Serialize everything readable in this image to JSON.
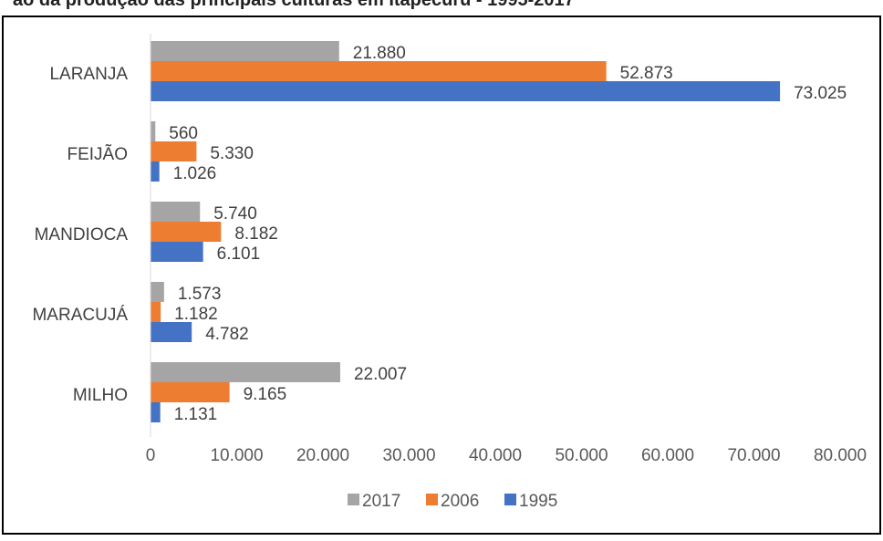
{
  "header_fragment": "ão da produção das principais culturas em Itapecuru - 1995-2017",
  "chart_data": {
    "type": "bar",
    "orientation": "horizontal",
    "categories": [
      "LARANJA",
      "FEIJÃO",
      "MANDIOCA",
      "MARACUJÁ",
      "MILHO"
    ],
    "series": [
      {
        "name": "2017",
        "color": "#a5a5a5",
        "values": [
          21880,
          560,
          5740,
          1573,
          22007
        ],
        "labels": [
          "21.880",
          "560",
          "5.740",
          "1.573",
          "22.007"
        ]
      },
      {
        "name": "2006",
        "color": "#ed7d31",
        "values": [
          52873,
          5330,
          8182,
          1182,
          9165
        ],
        "labels": [
          "52.873",
          "5.330",
          "8.182",
          "1.182",
          "9.165"
        ]
      },
      {
        "name": "1995",
        "color": "#4472c4",
        "values": [
          73025,
          1026,
          6101,
          4782,
          1131
        ],
        "labels": [
          "73.025",
          "1.026",
          "6.101",
          "4.782",
          "1.131"
        ]
      }
    ],
    "xlim": [
      0,
      80000
    ],
    "xticks": [
      0,
      10000,
      20000,
      30000,
      40000,
      50000,
      60000,
      70000,
      80000
    ],
    "xtick_labels": [
      "0",
      "10.000",
      "20.000",
      "30.000",
      "40.000",
      "50.000",
      "60.000",
      "70.000",
      "80.000"
    ],
    "grid": false,
    "legend_position": "bottom"
  }
}
